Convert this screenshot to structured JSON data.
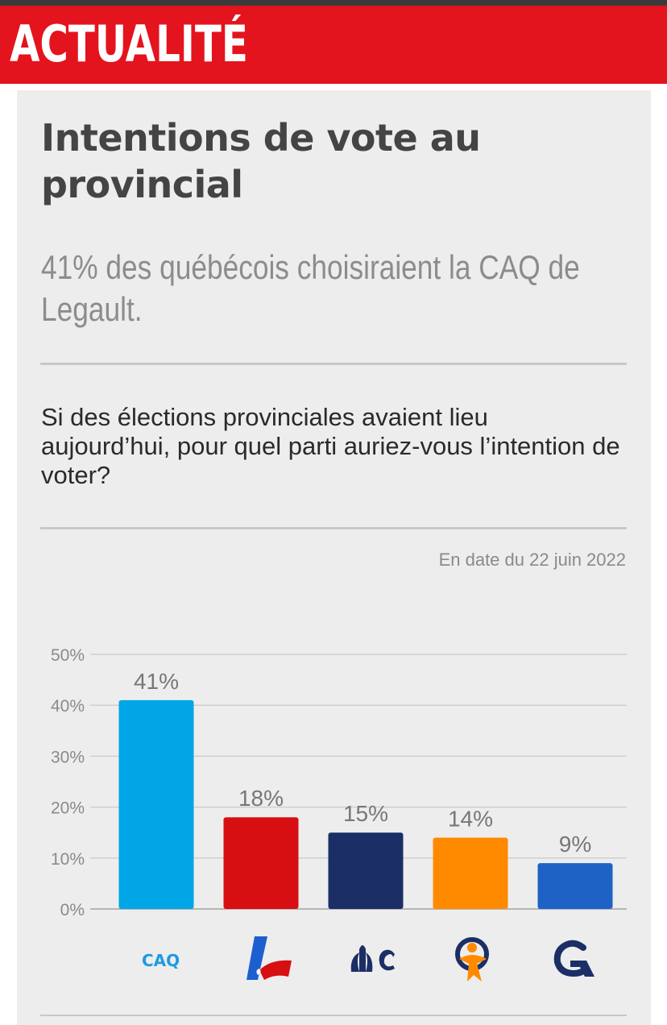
{
  "banner": {
    "title": "ACTUALITÉ"
  },
  "headline": "Intentions de vote au provincial",
  "subhead": {
    "highlight": "41%",
    "rest": " des québécois choisiraient la CAQ de Legault."
  },
  "question": "Si des élections provinciales avaient lieu aujourd’hui, pour quel parti auriez-vous l’intention de voter?",
  "date_note": "En date du 22 juin 2022",
  "logos": {
    "caq_text": "CAQ"
  },
  "colors": {
    "banner": "#e3141e",
    "caq": "#00a6e6",
    "plq": "#d70f12",
    "pq": "#1b2f66",
    "qs": "#ff8a00",
    "pcq": "#1e62c6"
  },
  "chart_data": {
    "type": "bar",
    "categories": [
      "CAQ",
      "PLQ",
      "PQ",
      "QS",
      "PCQ"
    ],
    "values": [
      41,
      18,
      15,
      14,
      9
    ],
    "value_labels": [
      "41%",
      "18%",
      "15%",
      "14%",
      "9%"
    ],
    "bar_colors": [
      "#00a6e6",
      "#d70f12",
      "#1b2f66",
      "#ff8a00",
      "#1e62c6"
    ],
    "yticks": [
      "0%",
      "10%",
      "20%",
      "30%",
      "40%",
      "50%"
    ],
    "ylim": [
      0,
      50
    ],
    "grid": true,
    "title": "",
    "xlabel": "",
    "ylabel": ""
  }
}
